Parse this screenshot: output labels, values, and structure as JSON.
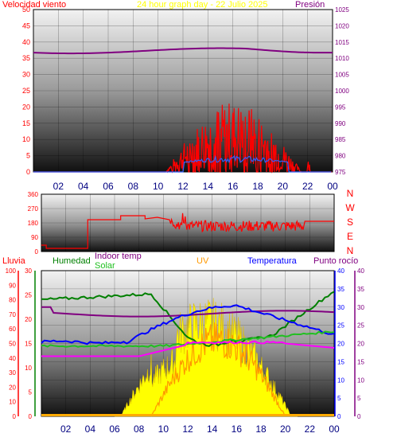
{
  "top_panel": {
    "title_left": "Velocidad viento",
    "title_center": "24 hour graph day - 22 Julio 2025",
    "title_right": "Presión",
    "left_ticks": [
      "0",
      "5",
      "10",
      "15",
      "20",
      "25",
      "30",
      "35",
      "40",
      "45",
      "50"
    ],
    "right_ticks": [
      "975",
      "980",
      "985",
      "990",
      "995",
      "1000",
      "1005",
      "1010",
      "1015",
      "1020",
      "1025"
    ],
    "x_ticks": [
      "02",
      "04",
      "06",
      "08",
      "10",
      "12",
      "14",
      "16",
      "18",
      "20",
      "22",
      "00"
    ]
  },
  "mid_panel": {
    "left_ticks": [
      "0",
      "90",
      "180",
      "270",
      "360"
    ],
    "compass": [
      "N",
      "W",
      "S",
      "E",
      "N"
    ]
  },
  "bottom_panel": {
    "lbl_lluvia": "Lluvia",
    "lbl_humedad": "Humedad",
    "lbl_indoor": "Indoor temp",
    "lbl_solar": "Solar",
    "lbl_uv": "UV",
    "lbl_temp": "Temperatura",
    "lbl_dew": "Punto rocío",
    "lluvia_ticks": [
      "0",
      "10",
      "20",
      "30",
      "40",
      "50",
      "60",
      "70",
      "80",
      "90",
      "100"
    ],
    "humedad_ticks": [
      "0",
      "5",
      "10",
      "15",
      "20",
      "25",
      "30"
    ],
    "temp_ticks": [
      "0",
      "5",
      "10",
      "15",
      "20",
      "25",
      "30",
      "35",
      "40"
    ],
    "dew_ticks": [
      "0",
      "5",
      "10",
      "15",
      "20",
      "25",
      "30",
      "35",
      "40"
    ],
    "x_ticks": [
      "02",
      "04",
      "06",
      "08",
      "10",
      "12",
      "14",
      "16",
      "18",
      "20",
      "22",
      "00"
    ]
  },
  "colors": {
    "wind": "#ff0000",
    "gust": "#ff0000",
    "wind_avg": "#3060ff",
    "pressure": "#800080",
    "direction": "#ff0000",
    "humidity": "#008000",
    "indoor": "#20c020",
    "solar": "#ffff00",
    "uv": "#ff9900",
    "temperature": "#0000ff",
    "dew": "#ff00ff",
    "outdoor_purple": "#800080",
    "axis_label": "#ff0000"
  }
}
